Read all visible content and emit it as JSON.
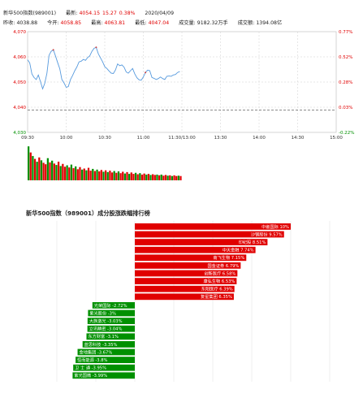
{
  "header": {
    "index_name": "新华500指数(989001)",
    "latest_label": "最新:",
    "latest_value": "4054.15",
    "change": "15.27",
    "change_pct": "0.38%",
    "date": "2020/04/09",
    "prev_close_label": "昨收:",
    "prev_close": "4038.88",
    "open_label": "今开:",
    "open": "4058.85",
    "high_label": "最高:",
    "high": "4063.81",
    "low_label": "最低:",
    "low": "4047.04",
    "volume_label": "成交量:",
    "volume": "9182.32万手",
    "amount_label": "成交额:",
    "amount": "1394.08亿"
  },
  "colors": {
    "up": "#e00000",
    "down": "#009000",
    "price_line": "#5599dd",
    "grid": "#cfcfcf"
  },
  "chart_data": [
    {
      "type": "line",
      "series": [
        {
          "values": [
            4058.85,
            4057.6,
            4053.2,
            4051.8,
            4051.0,
            4052.8,
            4050.2,
            4047.3,
            4049.5,
            4053.5,
            4060.6,
            4062.2,
            4062.8,
            4060.4,
            4057.8,
            4055.3,
            4051.0,
            4049.6,
            4047.9,
            4048.2,
            4051.0,
            4052.6,
            4054.5,
            4056.0,
            4058.0,
            4058.3,
            4059.0,
            4058.6,
            4059.7,
            4060.4,
            4062.2,
            4063.4,
            4063.81,
            4061.2,
            4059.6,
            4058.0,
            4056.1,
            4055.4,
            4054.4,
            4053.5,
            4053.4,
            4054.8,
            4057.2,
            4056.5,
            4056.8,
            4055.9,
            4054.0,
            4053.5,
            4054.5,
            4055.4,
            4053.3,
            4051.7,
            4050.9,
            4050.7,
            4052.0,
            4053.8,
            4054.7,
            4054.5,
            4051.8,
            4051.5,
            4051.0,
            4051.4,
            4052.0,
            4051.4,
            4051.0,
            4052.3,
            4052.4,
            4052.3,
            4052.8,
            4053.0,
            4053.8,
            4054.15
          ]
        }
      ],
      "y_ticks": [
        "4,070",
        "4,060",
        "4,050",
        "4,040",
        "4,030"
      ],
      "ylim": [
        4030,
        4070
      ],
      "prev_close": 4038.88,
      "right_ticks": [
        "0.77%",
        "0.52%",
        "0.28%",
        "0.03%",
        "-0.22%"
      ],
      "x_ticks": [
        "09:30",
        "10:00",
        "10:30",
        "11:00",
        "11:30/13:00",
        "13:30",
        "14:00",
        "14:30",
        "15:00"
      ],
      "grid": true
    },
    {
      "type": "bar",
      "volume_bars": [
        {
          "h": 0.95,
          "up": false
        },
        {
          "h": 0.78,
          "up": true
        },
        {
          "h": 0.68,
          "up": false
        },
        {
          "h": 0.6,
          "up": true
        },
        {
          "h": 0.52,
          "up": false
        },
        {
          "h": 0.64,
          "up": true
        },
        {
          "h": 0.56,
          "up": false
        },
        {
          "h": 0.49,
          "up": true
        },
        {
          "h": 0.45,
          "up": true
        },
        {
          "h": 0.62,
          "up": false
        },
        {
          "h": 0.5,
          "up": true
        },
        {
          "h": 0.55,
          "up": false
        },
        {
          "h": 0.47,
          "up": true
        },
        {
          "h": 0.43,
          "up": false
        },
        {
          "h": 0.52,
          "up": true
        },
        {
          "h": 0.4,
          "up": false
        },
        {
          "h": 0.46,
          "up": true
        },
        {
          "h": 0.38,
          "up": true
        },
        {
          "h": 0.42,
          "up": false
        },
        {
          "h": 0.36,
          "up": true
        },
        {
          "h": 0.44,
          "up": false
        },
        {
          "h": 0.34,
          "up": true
        },
        {
          "h": 0.39,
          "up": false
        },
        {
          "h": 0.31,
          "up": true
        },
        {
          "h": 0.37,
          "up": true
        },
        {
          "h": 0.3,
          "up": false
        },
        {
          "h": 0.33,
          "up": true
        },
        {
          "h": 0.28,
          "up": false
        },
        {
          "h": 0.35,
          "up": true
        },
        {
          "h": 0.27,
          "up": true
        },
        {
          "h": 0.32,
          "up": false
        },
        {
          "h": 0.26,
          "up": true
        },
        {
          "h": 0.3,
          "up": false
        },
        {
          "h": 0.25,
          "up": true
        },
        {
          "h": 0.29,
          "up": true
        },
        {
          "h": 0.24,
          "up": false
        },
        {
          "h": 0.28,
          "up": true
        },
        {
          "h": 0.23,
          "up": false
        },
        {
          "h": 0.27,
          "up": true
        },
        {
          "h": 0.22,
          "up": true
        },
        {
          "h": 0.26,
          "up": false
        },
        {
          "h": 0.21,
          "up": true
        },
        {
          "h": 0.25,
          "up": false
        },
        {
          "h": 0.2,
          "up": true
        },
        {
          "h": 0.24,
          "up": true
        },
        {
          "h": 0.19,
          "up": false
        },
        {
          "h": 0.23,
          "up": true
        },
        {
          "h": 0.18,
          "up": false
        },
        {
          "h": 0.22,
          "up": true
        },
        {
          "h": 0.18,
          "up": true
        },
        {
          "h": 0.21,
          "up": false
        },
        {
          "h": 0.17,
          "up": true
        },
        {
          "h": 0.2,
          "up": false
        },
        {
          "h": 0.16,
          "up": true
        },
        {
          "h": 0.19,
          "up": true
        },
        {
          "h": 0.16,
          "up": false
        },
        {
          "h": 0.18,
          "up": true
        },
        {
          "h": 0.15,
          "up": false
        },
        {
          "h": 0.17,
          "up": true
        },
        {
          "h": 0.15,
          "up": true
        },
        {
          "h": 0.16,
          "up": false
        },
        {
          "h": 0.14,
          "up": true
        },
        {
          "h": 0.16,
          "up": false
        },
        {
          "h": 0.13,
          "up": true
        },
        {
          "h": 0.15,
          "up": true
        },
        {
          "h": 0.13,
          "up": false
        },
        {
          "h": 0.14,
          "up": true
        },
        {
          "h": 0.12,
          "up": false
        },
        {
          "h": 0.14,
          "up": true
        },
        {
          "h": 0.12,
          "up": true
        },
        {
          "h": 0.13,
          "up": false
        },
        {
          "h": 0.12,
          "up": true
        }
      ]
    },
    {
      "type": "bar",
      "title": "新华500指数（989001）成分股涨跌幅排行榜",
      "max_abs": 10,
      "gainers": [
        {
          "name": "中嵌国际",
          "pct": "10%",
          "value": 10
        },
        {
          "name": "沙钢股份",
          "pct": "9.57%",
          "value": 9.57
        },
        {
          "name": "印纪股",
          "pct": "8.51%",
          "value": 8.51
        },
        {
          "name": "中天金融",
          "pct": "7.74%",
          "value": 7.74
        },
        {
          "name": "南飞生物",
          "pct": "7.15%",
          "value": 7.15
        },
        {
          "name": "国金证券",
          "pct": "6.79%",
          "value": 6.79
        },
        {
          "name": "创新医疗",
          "pct": "6.58%",
          "value": 6.58
        },
        {
          "name": "康弘生物",
          "pct": "6.53%",
          "value": 6.53
        },
        {
          "name": "东阳医疗",
          "pct": "6.39%",
          "value": 6.39
        },
        {
          "name": "复星集团",
          "pct": "6.35%",
          "value": 6.35
        }
      ],
      "losers": [
        {
          "name": "光荣国际",
          "pct": "-2.72%",
          "value": -2.72
        },
        {
          "name": "紫光股份",
          "pct": "-3%",
          "value": -3
        },
        {
          "name": "大族激光",
          "pct": "-3.03%",
          "value": -3.03
        },
        {
          "name": "立讯精密",
          "pct": "-3.04%",
          "value": -3.04
        },
        {
          "name": "东方财富",
          "pct": "-3.1%",
          "value": -3.1
        },
        {
          "name": "蓝思科技",
          "pct": "-3.35%",
          "value": -3.35
        },
        {
          "name": "金地集团",
          "pct": "-3.67%",
          "value": -3.67
        },
        {
          "name": "恒而能源",
          "pct": "-3.8%",
          "value": -3.8
        },
        {
          "name": "卫 士 通",
          "pct": "-3.95%",
          "value": -3.95
        },
        {
          "name": "紫光国微",
          "pct": "-3.99%",
          "value": -3.99
        }
      ]
    }
  ]
}
